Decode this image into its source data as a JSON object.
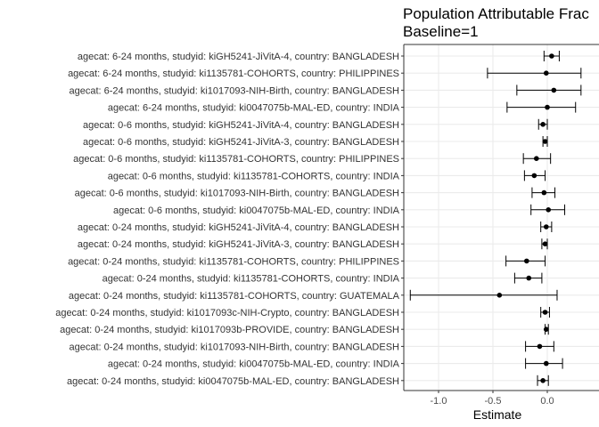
{
  "chart_data": {
    "type": "forest",
    "title_lines": [
      "Population Attributable Frac",
      "Baseline=1"
    ],
    "xlabel": "Estimate",
    "xlim": [
      -1.32,
      0.38
    ],
    "x_ticks": [
      -1.0,
      -0.5,
      0.0
    ],
    "x_tick_labels": [
      "-1.0",
      "-0.5",
      "0.0"
    ],
    "grid": true,
    "colors": {
      "panel_border": "#333333",
      "grid_major": "#ebebeb",
      "grid_minor": "#f5f5f5",
      "point": "#000000"
    },
    "rows": [
      {
        "label": "agecat: 6-24 months, studyid: kiGH5241-JiVitA-4, country: BANGLADESH",
        "estimate": 0.04,
        "lower": -0.03,
        "upper": 0.11
      },
      {
        "label": "agecat: 6-24 months, studyid: ki1135781-COHORTS, country: PHILIPPINES",
        "estimate": -0.01,
        "lower": -0.55,
        "upper": 0.31
      },
      {
        "label": "agecat: 6-24 months, studyid: ki1017093-NIH-Birth, country: BANGLADESH",
        "estimate": 0.06,
        "lower": -0.28,
        "upper": 0.31
      },
      {
        "label": "agecat: 6-24 months, studyid: ki0047075b-MAL-ED, country: INDIA",
        "estimate": 0.0,
        "lower": -0.37,
        "upper": 0.26
      },
      {
        "label": "agecat: 0-6 months, studyid: kiGH5241-JiVitA-4, country: BANGLADESH",
        "estimate": -0.04,
        "lower": -0.08,
        "upper": 0.0
      },
      {
        "label": "agecat: 0-6 months, studyid: kiGH5241-JiVitA-3, country: BANGLADESH",
        "estimate": -0.02,
        "lower": -0.04,
        "upper": 0.0
      },
      {
        "label": "agecat: 0-6 months, studyid: ki1135781-COHORTS, country: PHILIPPINES",
        "estimate": -0.1,
        "lower": -0.22,
        "upper": 0.03
      },
      {
        "label": "agecat: 0-6 months, studyid: ki1135781-COHORTS, country: INDIA",
        "estimate": -0.12,
        "lower": -0.21,
        "upper": -0.02
      },
      {
        "label": "agecat: 0-6 months, studyid: ki1017093-NIH-Birth, country: BANGLADESH",
        "estimate": -0.03,
        "lower": -0.14,
        "upper": 0.07
      },
      {
        "label": "agecat: 0-6 months, studyid: ki0047075b-MAL-ED, country: INDIA",
        "estimate": 0.01,
        "lower": -0.15,
        "upper": 0.16
      },
      {
        "label": "agecat: 0-24 months, studyid: kiGH5241-JiVitA-4, country: BANGLADESH",
        "estimate": -0.01,
        "lower": -0.06,
        "upper": 0.04
      },
      {
        "label": "agecat: 0-24 months, studyid: kiGH5241-JiVitA-3, country: BANGLADESH",
        "estimate": -0.02,
        "lower": -0.05,
        "upper": 0.0
      },
      {
        "label": "agecat: 0-24 months, studyid: ki1135781-COHORTS, country: PHILIPPINES",
        "estimate": -0.19,
        "lower": -0.38,
        "upper": -0.02
      },
      {
        "label": "agecat: 0-24 months, studyid: ki1135781-COHORTS, country: INDIA",
        "estimate": -0.17,
        "lower": -0.3,
        "upper": -0.05
      },
      {
        "label": "agecat: 0-24 months, studyid: ki1135781-COHORTS, country: GUATEMALA",
        "estimate": -0.44,
        "lower": -1.26,
        "upper": 0.09
      },
      {
        "label": "agecat: 0-24 months, studyid: ki1017093c-NIH-Crypto, country: BANGLADESH",
        "estimate": -0.02,
        "lower": -0.06,
        "upper": 0.02
      },
      {
        "label": "agecat: 0-24 months, studyid: ki1017093b-PROVIDE, country: BANGLADESH",
        "estimate": -0.01,
        "lower": -0.02,
        "upper": 0.01
      },
      {
        "label": "agecat: 0-24 months, studyid: ki1017093-NIH-Birth, country: BANGLADESH",
        "estimate": -0.07,
        "lower": -0.2,
        "upper": 0.06
      },
      {
        "label": "agecat: 0-24 months, studyid: ki0047075b-MAL-ED, country: INDIA",
        "estimate": -0.01,
        "lower": -0.2,
        "upper": 0.14
      },
      {
        "label": "agecat: 0-24 months, studyid: ki0047075b-MAL-ED, country: BANGLADESH",
        "estimate": -0.04,
        "lower": -0.09,
        "upper": 0.01
      }
    ]
  }
}
